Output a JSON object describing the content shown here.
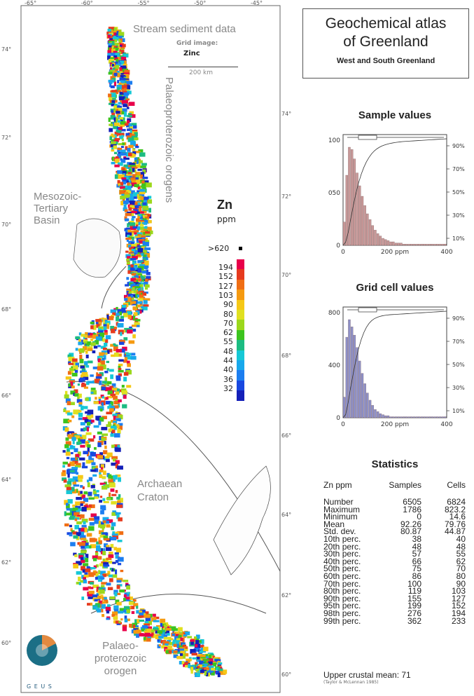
{
  "map": {
    "title": "Stream sediment data",
    "grid_label": "Grid image:",
    "element_label": "Zinc",
    "scale_label": "200 km",
    "lon_labels": [
      "-65°",
      "-60°",
      "-55°",
      "-50°",
      "-45°"
    ],
    "left_lat_labels": [
      "74°",
      "72°",
      "70°",
      "68°",
      "66°",
      "64°",
      "62°",
      "60°"
    ],
    "right_lat_labels": [
      "74°",
      "72°",
      "70°",
      "68°",
      "66°",
      "64°",
      "62°",
      "60°"
    ],
    "regions": {
      "mesozoic": [
        "Mesozoic-",
        "Tertiary",
        "Basin"
      ],
      "palaeo_n": "Palaeoproterozoic orogens",
      "archaean": [
        "Archaean",
        "Craton"
      ],
      "palaeo_s": [
        "Palaeo-",
        "proterozoic",
        "orogen"
      ]
    },
    "logo_text": "G E U S"
  },
  "legend": {
    "element": "Zn",
    "unit": "ppm",
    "top_label": ">620",
    "classes": [
      "194",
      "152",
      "127",
      "103",
      "90",
      "80",
      "70",
      "62",
      "55",
      "48",
      "44",
      "40",
      "36",
      "32"
    ],
    "colors": [
      "#e8004a",
      "#e63a1e",
      "#f06e14",
      "#f59a10",
      "#f5c816",
      "#e0e020",
      "#9cd81c",
      "#3cc41e",
      "#1cbc82",
      "#16c8d6",
      "#18a8ec",
      "#1c7ef0",
      "#1848e0",
      "#1420b8"
    ]
  },
  "title_box": {
    "line1": "Geochemical atlas",
    "line2": "of Greenland",
    "subtitle": "West and South Greenland"
  },
  "sample_chart": {
    "title": "Sample values",
    "y_ticks": [
      "100",
      "050",
      "0"
    ],
    "x_ticks": [
      "0",
      "200 ppm",
      "400"
    ],
    "pct_ticks": [
      "90%",
      "70%",
      "50%",
      "30%",
      "10%"
    ],
    "bar_color": "#c89898",
    "values": [
      20,
      60,
      84,
      82,
      74,
      62,
      51,
      42,
      34,
      27,
      22,
      17,
      13,
      10,
      8,
      6,
      5,
      4,
      3,
      3,
      2,
      2,
      2,
      1,
      1,
      1,
      1,
      1,
      1,
      1,
      1,
      1,
      1,
      1,
      1,
      1,
      1,
      1,
      1,
      1
    ]
  },
  "grid_chart": {
    "title": "Grid cell values",
    "y_ticks": [
      "800",
      "400",
      "0"
    ],
    "x_ticks": [
      "0",
      "200 ppm",
      "400"
    ],
    "pct_ticks": [
      "90%",
      "70%",
      "50%",
      "30%",
      "10%"
    ],
    "bar_color": "#8d90c8",
    "values": [
      20,
      78,
      95,
      88,
      80,
      68,
      55,
      43,
      33,
      24,
      17,
      12,
      8,
      6,
      4,
      3,
      2,
      2,
      1,
      1,
      1,
      1,
      1,
      1,
      1,
      1,
      1,
      1,
      1,
      1,
      1,
      1,
      1,
      1,
      1,
      1,
      1,
      1,
      1,
      1
    ]
  },
  "statistics": {
    "title": "Statistics",
    "headers": [
      "Zn ppm",
      "Samples",
      "Cells"
    ],
    "rows": [
      [
        "Number",
        "6505",
        "6824"
      ],
      [
        "Maximum",
        "1786",
        "823.2"
      ],
      [
        "Minimum",
        "0",
        "14.6"
      ],
      [
        "Mean",
        "92.26",
        "79.76"
      ],
      [
        "Std. dev.",
        "80.87",
        "44.87"
      ],
      [
        "10th perc.",
        "38",
        "40"
      ],
      [
        "20th perc.",
        "48",
        "48"
      ],
      [
        "30th perc.",
        "57",
        "55"
      ],
      [
        "40th perc.",
        "66",
        "62"
      ],
      [
        "50th perc.",
        "75",
        "70"
      ],
      [
        "60th perc.",
        "86",
        "80"
      ],
      [
        "70th perc.",
        "100",
        "90"
      ],
      [
        "80th perc.",
        "119",
        "103"
      ],
      [
        "90th perc.",
        "155",
        "127"
      ],
      [
        "95th perc.",
        "199",
        "152"
      ],
      [
        "98th perc.",
        "276",
        "194"
      ],
      [
        "99th perc.",
        "362",
        "233"
      ]
    ],
    "upper_crustal": "Upper crustal mean: 71",
    "reference": "(Taylor & McLennan 1985)"
  }
}
